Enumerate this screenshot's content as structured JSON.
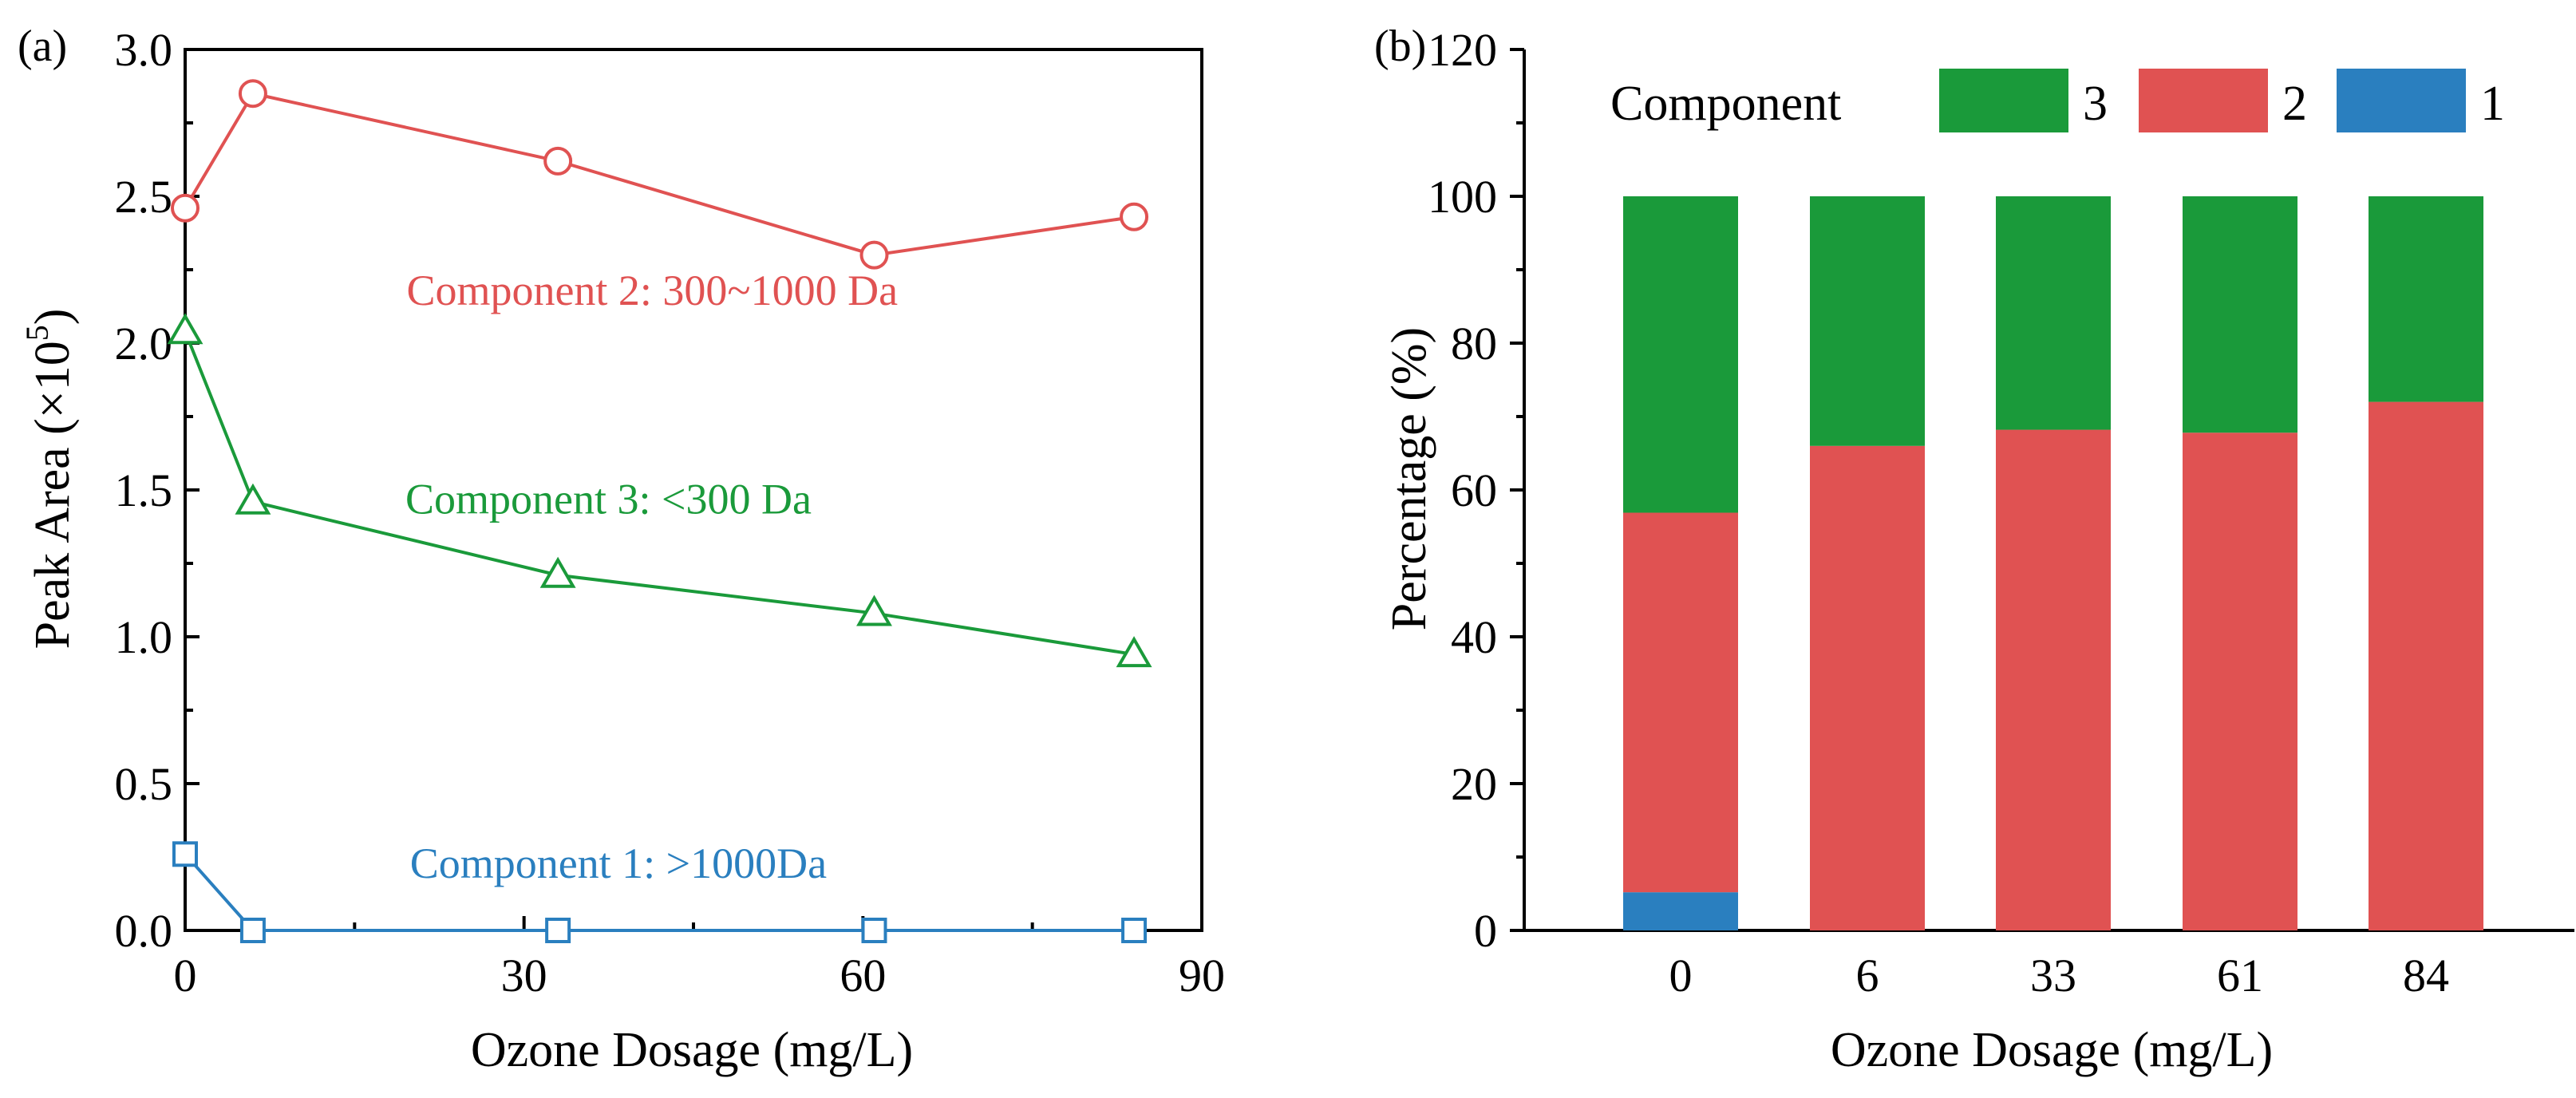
{
  "colors": {
    "component1": "#2a7fbf",
    "component2": "#e05252",
    "component3": "#1a9a3a"
  },
  "chart_data": [
    {
      "panel": "(a)",
      "type": "line",
      "xlabel": "Ozone Dosage (mg/L)",
      "ylabel_main": "Peak Area (×10",
      "ylabel_sup": "5",
      "ylabel_close": ")",
      "xlim": [
        0,
        90
      ],
      "ylim": [
        0,
        3.0
      ],
      "xticks": [
        0,
        30,
        60,
        90
      ],
      "yticks": [
        0.0,
        0.5,
        1.0,
        1.5,
        2.0,
        2.5,
        3.0
      ],
      "ytick_labels": [
        "0.0",
        "0.5",
        "1.0",
        "1.5",
        "2.0",
        "2.5",
        "3.0"
      ],
      "x": [
        0,
        6,
        33,
        61,
        84
      ],
      "series": [
        {
          "key": "component2",
          "label": "Component 2: 300~1000 Da",
          "marker": "circle",
          "values": [
            2.46,
            2.85,
            2.62,
            2.3,
            2.43
          ],
          "label_at": [
            19.6,
            2.13
          ]
        },
        {
          "key": "component3",
          "label": "Component 3: <300 Da",
          "marker": "triangle",
          "values": [
            2.04,
            1.46,
            1.21,
            1.08,
            0.94
          ],
          "label_at": [
            19.5,
            1.42
          ]
        },
        {
          "key": "component1",
          "label": "Component 1: >1000Da",
          "marker": "square",
          "values": [
            0.26,
            0.0,
            0.0,
            0.0,
            0.0
          ],
          "label_at": [
            19.9,
            0.18
          ]
        }
      ]
    },
    {
      "panel": "(b)",
      "type": "bar",
      "stacked": true,
      "xlabel": "Ozone Dosage (mg/L)",
      "ylabel": "Percentage (%)",
      "ylim": [
        0,
        120
      ],
      "yticks": [
        0,
        20,
        40,
        60,
        80,
        100,
        120
      ],
      "categories": [
        "0",
        "6",
        "33",
        "61",
        "84"
      ],
      "legend_title": "Component",
      "legend_position": "top",
      "series": [
        {
          "key": "component1",
          "name": "1",
          "values": [
            5.2,
            0,
            0,
            0,
            0
          ]
        },
        {
          "key": "component2",
          "name": "2",
          "values": [
            51.7,
            66.0,
            68.2,
            67.8,
            72.0
          ]
        },
        {
          "key": "component3",
          "name": "3",
          "values": [
            43.1,
            34.0,
            31.8,
            32.2,
            28.0
          ]
        }
      ],
      "legend_order": [
        "component3",
        "component2",
        "component1"
      ]
    }
  ]
}
